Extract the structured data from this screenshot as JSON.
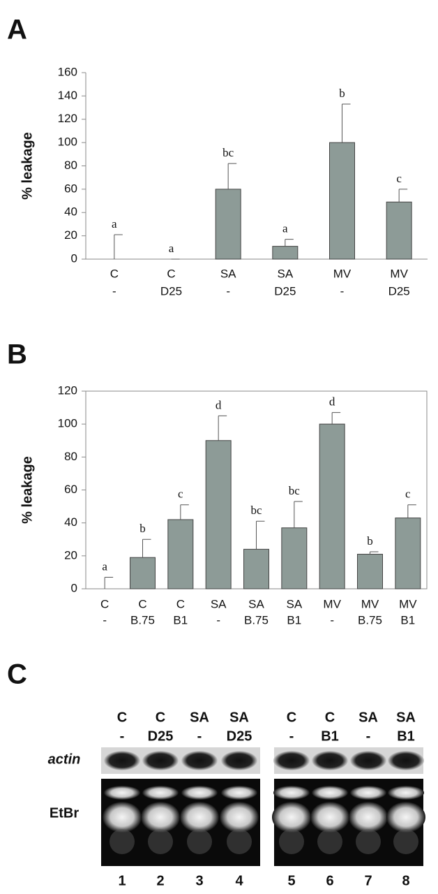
{
  "chart_data": [
    {
      "type": "bar",
      "panel": "A",
      "ylabel": "% leakage",
      "categories": [
        "C",
        "C",
        "SA",
        "SA",
        "MV",
        "MV"
      ],
      "subcategories": [
        "-",
        "D25",
        "-",
        "D25",
        "-",
        "D25"
      ],
      "values": [
        0,
        0,
        60,
        11,
        100,
        49
      ],
      "errors": [
        21,
        0,
        22,
        6,
        33,
        11
      ],
      "significance": [
        "a",
        "a",
        "bc",
        "a",
        "b",
        "c"
      ],
      "color": "#8d9b97",
      "ylim": [
        0,
        160
      ],
      "yticks": [
        0,
        20,
        40,
        60,
        80,
        100,
        120,
        140,
        160
      ],
      "frame": false
    },
    {
      "type": "bar",
      "panel": "B",
      "ylabel": "% leakage",
      "categories": [
        "C",
        "C",
        "C",
        "SA",
        "SA",
        "SA",
        "MV",
        "MV",
        "MV"
      ],
      "subcategories": [
        "-",
        "B.75",
        "B1",
        "-",
        "B.75",
        "B1",
        "-",
        "B.75",
        "B1"
      ],
      "values": [
        0,
        19,
        42,
        90,
        24,
        37,
        100,
        21,
        43
      ],
      "errors": [
        7,
        11,
        9,
        15,
        17,
        16,
        7,
        1.5,
        8
      ],
      "significance": [
        "a",
        "b",
        "c",
        "d",
        "bc",
        "bc",
        "d",
        "b",
        "c"
      ],
      "color": "#8d9b97",
      "ylim": [
        0,
        120
      ],
      "yticks": [
        0,
        20,
        40,
        60,
        80,
        100,
        120
      ],
      "frame": true
    }
  ],
  "gel": {
    "panel": "C",
    "rows": [
      "actin",
      "EtBr"
    ],
    "lanes": [
      {
        "top": "C",
        "bottom": "-",
        "number": "1"
      },
      {
        "top": "C",
        "bottom": "D25",
        "number": "2"
      },
      {
        "top": "SA",
        "bottom": "-",
        "number": "3"
      },
      {
        "top": "SA",
        "bottom": "D25",
        "number": "4"
      },
      {
        "top": "C",
        "bottom": "-",
        "number": "5"
      },
      {
        "top": "C",
        "bottom": "B1",
        "number": "6"
      },
      {
        "top": "SA",
        "bottom": "-",
        "number": "7"
      },
      {
        "top": "SA",
        "bottom": "B1",
        "number": "8"
      }
    ]
  }
}
